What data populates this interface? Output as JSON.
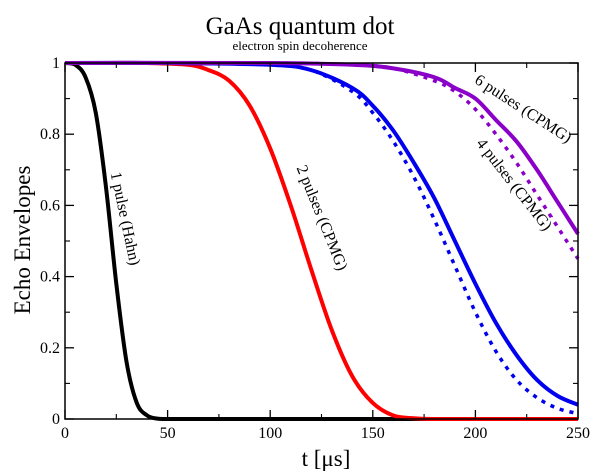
{
  "chart_data": {
    "type": "line",
    "title": "GaAs quantum dot",
    "subtitle": "electron spin decoherence",
    "xlabel": "t [μs]",
    "ylabel": "Echo Envelopes",
    "xlim": [
      0,
      250
    ],
    "ylim": [
      0,
      1
    ],
    "xticks": [
      0,
      50,
      100,
      150,
      200,
      250
    ],
    "yticks": [
      0,
      0.2,
      0.4,
      0.6,
      0.8,
      1
    ],
    "ytick_labels": [
      "0",
      "0.2",
      "0.4",
      "0.6",
      "0.8",
      "1"
    ],
    "grid": false,
    "legend": "none",
    "colors": {
      "hahn": "#000000",
      "cpmg2": "#ff0000",
      "cpmg4": "#0000ee",
      "cpmg6": "#8a00c8"
    },
    "series": [
      {
        "name": "1 pulse (Hahn)",
        "color": "#000000",
        "style": "solid",
        "x": [
          0,
          5,
          10,
          15,
          20,
          25,
          30,
          35,
          40,
          45,
          50,
          60,
          80,
          100,
          150,
          200,
          250
        ],
        "y": [
          1.0,
          0.995,
          0.96,
          0.86,
          0.65,
          0.38,
          0.16,
          0.045,
          0.01,
          0.001,
          0.0,
          0.0,
          0.0,
          0.0,
          0.0,
          0.0,
          0.0
        ]
      },
      {
        "name": "2 pulses (CPMG)",
        "color": "#ff0000",
        "style": "solid",
        "x": [
          0,
          20,
          40,
          60,
          70,
          80,
          90,
          100,
          110,
          120,
          130,
          140,
          150,
          160,
          170,
          180,
          200,
          250
        ],
        "y": [
          1.0,
          1.0,
          1.0,
          0.995,
          0.98,
          0.95,
          0.88,
          0.76,
          0.6,
          0.42,
          0.25,
          0.12,
          0.045,
          0.01,
          0.002,
          0.0,
          0.0,
          0.0
        ]
      },
      {
        "name": "4 pulses (CPMG)",
        "color": "#0000ee",
        "style": "solid",
        "x": [
          0,
          50,
          100,
          120,
          140,
          150,
          160,
          170,
          180,
          190,
          200,
          210,
          220,
          230,
          240,
          250
        ],
        "y": [
          1.0,
          1.0,
          0.995,
          0.98,
          0.93,
          0.88,
          0.81,
          0.72,
          0.62,
          0.5,
          0.38,
          0.27,
          0.18,
          0.11,
          0.065,
          0.04
        ]
      },
      {
        "name": "",
        "color": "#0000ee",
        "style": "dotted",
        "x": [
          0,
          50,
          100,
          120,
          140,
          150,
          160,
          170,
          180,
          190,
          200,
          210,
          220,
          230,
          240,
          250
        ],
        "y": [
          1.0,
          1.0,
          0.995,
          0.98,
          0.92,
          0.86,
          0.78,
          0.68,
          0.56,
          0.43,
          0.3,
          0.19,
          0.11,
          0.06,
          0.03,
          0.015
        ]
      },
      {
        "name": "6 pulses (CPMG)",
        "color": "#8a00c8",
        "style": "solid",
        "x": [
          0,
          100,
          140,
          160,
          180,
          190,
          200,
          210,
          220,
          230,
          240,
          250
        ],
        "y": [
          1.0,
          1.0,
          0.995,
          0.985,
          0.96,
          0.93,
          0.9,
          0.84,
          0.78,
          0.7,
          0.61,
          0.52
        ]
      },
      {
        "name": "",
        "color": "#8a00c8",
        "style": "dotted",
        "x": [
          0,
          100,
          140,
          160,
          180,
          190,
          200,
          210,
          220,
          230,
          240,
          250
        ],
        "y": [
          1.0,
          1.0,
          0.995,
          0.985,
          0.95,
          0.92,
          0.87,
          0.8,
          0.72,
          0.63,
          0.54,
          0.45
        ]
      }
    ],
    "annotations": [
      {
        "text": "1 pulse (Hahn)",
        "x": 27,
        "y": 0.56,
        "angle": 78
      },
      {
        "text": "2 pulses (CPMG)",
        "x": 123,
        "y": 0.56,
        "angle": 68
      },
      {
        "text": "4 pulses (CPMG)",
        "x": 217,
        "y": 0.65,
        "angle": 52
      },
      {
        "text": "6 pulses (CPMG)",
        "x": 222,
        "y": 0.86,
        "angle": 33
      }
    ]
  }
}
